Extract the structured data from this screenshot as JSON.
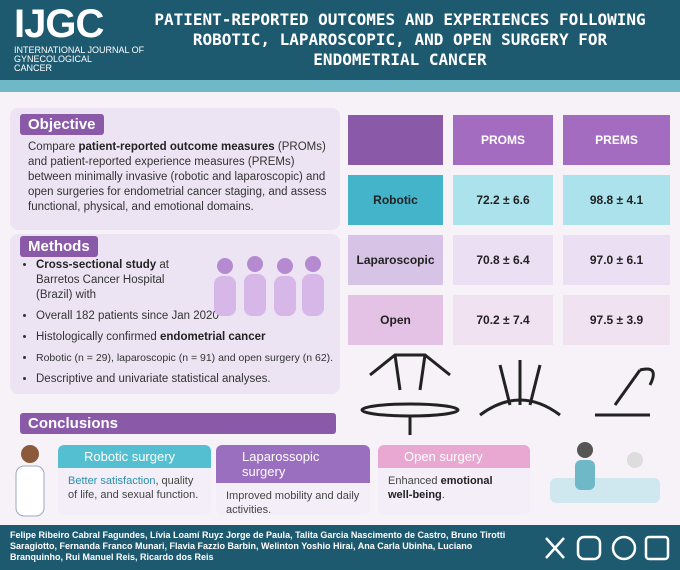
{
  "header": {
    "logo": "IJGC",
    "logo_sub": [
      "INTERNATIONAL JOURNAL OF",
      "GYNECOLOGICAL",
      "CANCER"
    ],
    "title": [
      "PATIENT-REPORTED OUTCOMES AND EXPERIENCES FOLLOWING",
      "ROBOTIC, LAPAROSCOPIC, AND OPEN SURGERY FOR",
      "ENDOMETRIAL CANCER"
    ]
  },
  "objective": {
    "heading": "Objective",
    "text": [
      "Compare ",
      "patient-reported outcome measures",
      " (PROMs) and patient-reported experience measures (PREMs) between minimally invasive (robotic and laparoscopic) and open surgeries for endometrial cancer staging, and assess functional, physical, and emotional domains."
    ]
  },
  "methods": {
    "heading": "Methods",
    "bullets": [
      [
        "Cross-sectional study",
        " at Barretos Cancer Hospital (Brazil) with"
      ],
      [
        "Overall 182 patients since Jan 2020"
      ],
      [
        "Histologically confirmed ",
        "endometrial cancer"
      ],
      [
        "Robotic (n = 29), laparoscopic (n = 91) and open surgery (n 62)."
      ],
      [
        "Descriptive and univariate statistical analyses."
      ]
    ]
  },
  "table": {
    "columns": [
      "PROMS",
      "PREMS"
    ],
    "rows": [
      [
        "Robotic",
        "72.2 ± 6.6",
        "98.8 ± 4.1"
      ],
      [
        "Laparoscopic",
        "70.8 ± 6.4",
        "97.0 ± 6.1"
      ],
      [
        "Open",
        "70.2 ± 7.4",
        "97.5 ± 3.9"
      ]
    ]
  },
  "conclusions": {
    "heading": "Conclusions",
    "cards": [
      {
        "title": "Robotic surgery",
        "text": [
          "Better satisfaction",
          ", quality of life, and sexual function."
        ]
      },
      {
        "title": "Laparossopic surgery",
        "text": [
          "Improved mobility and daily activities."
        ]
      },
      {
        "title": "Open surgery",
        "text": [
          "Enhanced ",
          "emotional well-being",
          "."
        ]
      }
    ]
  },
  "footer": {
    "authors": "Felipe Ribeiro Cabral Fagundes, Lívia Loamí Ruyz Jorge de Paula, Talita Garcia Nascimento de Castro, Bruno Tirotti Saragiotto, Fernanda Franco Munari, Flavia Fazzio Barbin, Welinton Yoshio Hirai, Ana Carla Ubinha, Luciano Branquinho, Rui Manuel Reis, Ricardo dos Reis"
  }
}
